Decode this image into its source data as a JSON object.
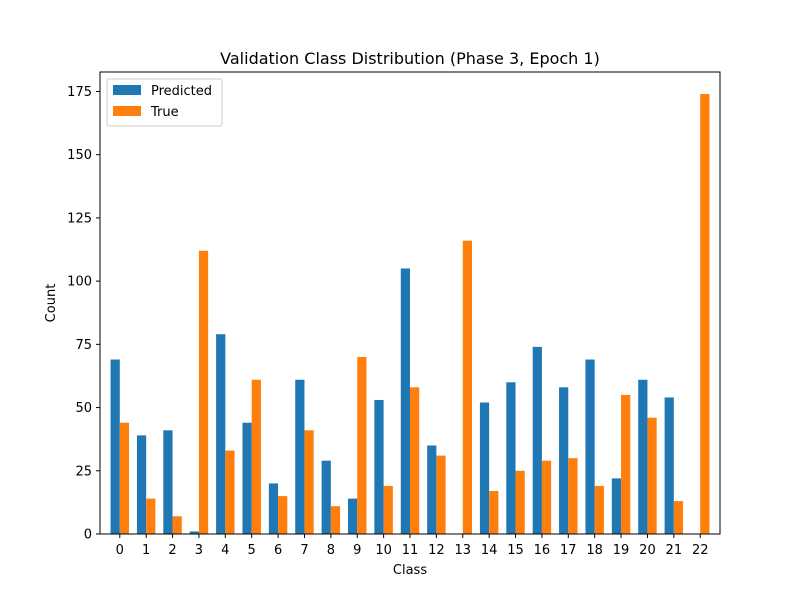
{
  "chart_data": {
    "type": "bar",
    "title": "Validation Class Distribution (Phase 3, Epoch 1)",
    "xlabel": "Class",
    "ylabel": "Count",
    "categories": [
      "0",
      "1",
      "2",
      "3",
      "4",
      "5",
      "6",
      "7",
      "8",
      "9",
      "10",
      "11",
      "12",
      "13",
      "14",
      "15",
      "16",
      "17",
      "18",
      "19",
      "20",
      "21",
      "22"
    ],
    "series": [
      {
        "name": "Predicted",
        "color": "#1f77b4",
        "values": [
          69,
          39,
          41,
          1,
          79,
          44,
          20,
          61,
          29,
          14,
          53,
          105,
          35,
          0,
          52,
          60,
          74,
          58,
          69,
          22,
          61,
          54,
          0
        ]
      },
      {
        "name": "True",
        "color": "#ff7f0e",
        "values": [
          44,
          14,
          7,
          112,
          33,
          61,
          15,
          41,
          11,
          70,
          19,
          58,
          31,
          116,
          17,
          25,
          29,
          30,
          19,
          55,
          46,
          13,
          174
        ]
      }
    ],
    "ylim": [
      0,
      182.7
    ],
    "yticks": [
      0,
      25,
      50,
      75,
      100,
      125,
      150,
      175
    ],
    "grid": false,
    "legend_position": "top-left"
  }
}
